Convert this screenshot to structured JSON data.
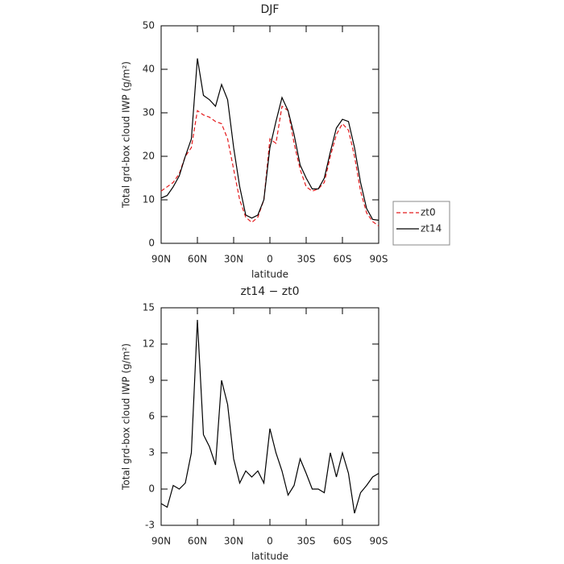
{
  "chart_data": [
    {
      "type": "line",
      "title": "DJF",
      "xlabel": "latitude",
      "ylabel": "Total grd-box cloud IWP (g/m²)",
      "x": [
        90,
        85,
        80,
        75,
        70,
        65,
        60,
        55,
        50,
        45,
        40,
        35,
        30,
        25,
        20,
        15,
        10,
        5,
        0,
        -5,
        -10,
        -15,
        -20,
        -25,
        -30,
        -35,
        -40,
        -45,
        -50,
        -55,
        -60,
        -65,
        -70,
        -75,
        -80,
        -85,
        -90
      ],
      "series": [
        {
          "name": "zt0",
          "color": "#e41a1c",
          "dash": true,
          "values": [
            12,
            13,
            14,
            16,
            20,
            22,
            30.5,
            29.5,
            29,
            28,
            27.5,
            24,
            17,
            10,
            6,
            4.8,
            6,
            10,
            24,
            23,
            31.5,
            30.5,
            23,
            17,
            13,
            12,
            12.5,
            14,
            20,
            25,
            27.5,
            26,
            20,
            12,
            7,
            5,
            4
          ]
        },
        {
          "name": "zt14",
          "color": "#000000",
          "dash": false,
          "values": [
            10.4,
            11,
            13,
            15.5,
            20,
            24,
            42.5,
            34,
            33,
            31.5,
            36.5,
            33,
            22,
            13,
            6.5,
            5.8,
            6.5,
            10,
            22,
            28,
            33.5,
            30.5,
            25,
            18,
            15,
            12.5,
            12.5,
            15,
            21,
            26.5,
            28.5,
            28,
            22,
            14,
            8,
            5.5,
            5.3
          ]
        }
      ],
      "xlim": [
        90,
        -90
      ],
      "xticks": [
        {
          "value": 90,
          "label": "90N"
        },
        {
          "value": 60,
          "label": "60N"
        },
        {
          "value": 30,
          "label": "30N"
        },
        0,
        {
          "value": -30,
          "label": "30S"
        },
        {
          "value": -60,
          "label": "60S"
        },
        {
          "value": -90,
          "label": "90S"
        }
      ],
      "ylim": [
        0,
        50
      ],
      "yticks": [
        0,
        10,
        20,
        30,
        40,
        50
      ],
      "legend": "outside-right"
    },
    {
      "type": "line",
      "title": "zt14 − zt0",
      "xlabel": "latitude",
      "ylabel": "Total grd-box cloud IWP (g/m²)",
      "x": [
        90,
        85,
        80,
        75,
        70,
        65,
        60,
        55,
        50,
        45,
        40,
        35,
        30,
        25,
        20,
        15,
        10,
        5,
        0,
        -5,
        -10,
        -15,
        -20,
        -25,
        -30,
        -35,
        -40,
        -45,
        -50,
        -55,
        -60,
        -65,
        -70,
        -75,
        -80,
        -85,
        -90
      ],
      "series": [
        {
          "color": "#000000",
          "dash": false,
          "values": [
            -1.2,
            -1.5,
            0.3,
            0,
            0.5,
            3,
            14,
            4.5,
            3.5,
            2,
            9,
            7,
            2.5,
            0.5,
            1.5,
            1,
            1.5,
            0.5,
            5,
            3,
            1.5,
            -0.5,
            0.3,
            2.5,
            1.3,
            0,
            0,
            -0.3,
            3,
            1,
            3,
            1.3,
            -2,
            -0.3,
            0.3,
            1,
            1.3
          ]
        }
      ],
      "xlim": [
        90,
        -90
      ],
      "xticks": [
        {
          "value": 90,
          "label": "90N"
        },
        {
          "value": 60,
          "label": "60N"
        },
        {
          "value": 30,
          "label": "30N"
        },
        0,
        {
          "value": -30,
          "label": "30S"
        },
        {
          "value": -60,
          "label": "60S"
        },
        {
          "value": -90,
          "label": "90S"
        }
      ],
      "ylim": [
        -3,
        15
      ],
      "yticks": [
        -3,
        0,
        3,
        6,
        9,
        12,
        15
      ]
    }
  ]
}
